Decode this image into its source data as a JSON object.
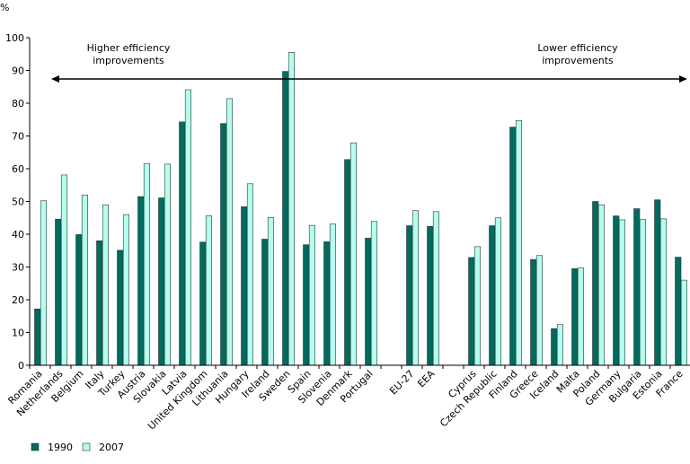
{
  "chart_data": {
    "type": "bar",
    "ylabel": "%",
    "ylim": [
      0,
      100
    ],
    "yticks": [
      0,
      10,
      20,
      30,
      40,
      50,
      60,
      70,
      80,
      90,
      100
    ],
    "grid": false,
    "legend_placement": "bottom-left",
    "categories": [
      "Romania",
      "Netherlands",
      "Belgium",
      "Italy",
      "Turkey",
      "Austria",
      "Slovakia",
      "Latvia",
      "United Kingdom",
      "Lithuania",
      "Hungary",
      "Ireland",
      "Sweden",
      "Spain",
      "Slovenia",
      "Denmark",
      "Portugal",
      "",
      "EU-27",
      "EEA",
      "",
      "Cyprus",
      "Czech Republic",
      "Finland",
      "Greece",
      "Iceland",
      "Malta",
      "Poland",
      "Germany",
      "Bulgaria",
      "Estonia",
      "France"
    ],
    "series": [
      {
        "name": "1990",
        "color": "#006b5e",
        "values": [
          17.2,
          44.6,
          39.9,
          38.0,
          35.1,
          51.5,
          51.1,
          74.3,
          37.6,
          73.8,
          48.4,
          38.5,
          89.7,
          36.8,
          37.7,
          62.8,
          38.8,
          null,
          42.6,
          42.4,
          null,
          32.9,
          42.6,
          72.7,
          32.3,
          11.2,
          29.5,
          50.0,
          45.6,
          47.8,
          50.5,
          33.0
        ]
      },
      {
        "name": "2007",
        "color": "#b3ffee",
        "values": [
          50.2,
          58.1,
          52.0,
          49.0,
          46.0,
          61.6,
          61.4,
          84.1,
          45.7,
          81.4,
          55.4,
          45.1,
          95.5,
          42.7,
          43.1,
          67.9,
          43.9,
          null,
          47.2,
          46.9,
          null,
          36.2,
          45.0,
          74.7,
          33.5,
          12.4,
          29.7,
          49.0,
          44.4,
          44.5,
          44.7,
          26.0
        ]
      }
    ],
    "annotations": {
      "left": [
        "Higher efficiency",
        "improvements"
      ],
      "right": [
        "Lower efficiency",
        "improvements"
      ],
      "arrow": "double-headed horizontal"
    }
  }
}
